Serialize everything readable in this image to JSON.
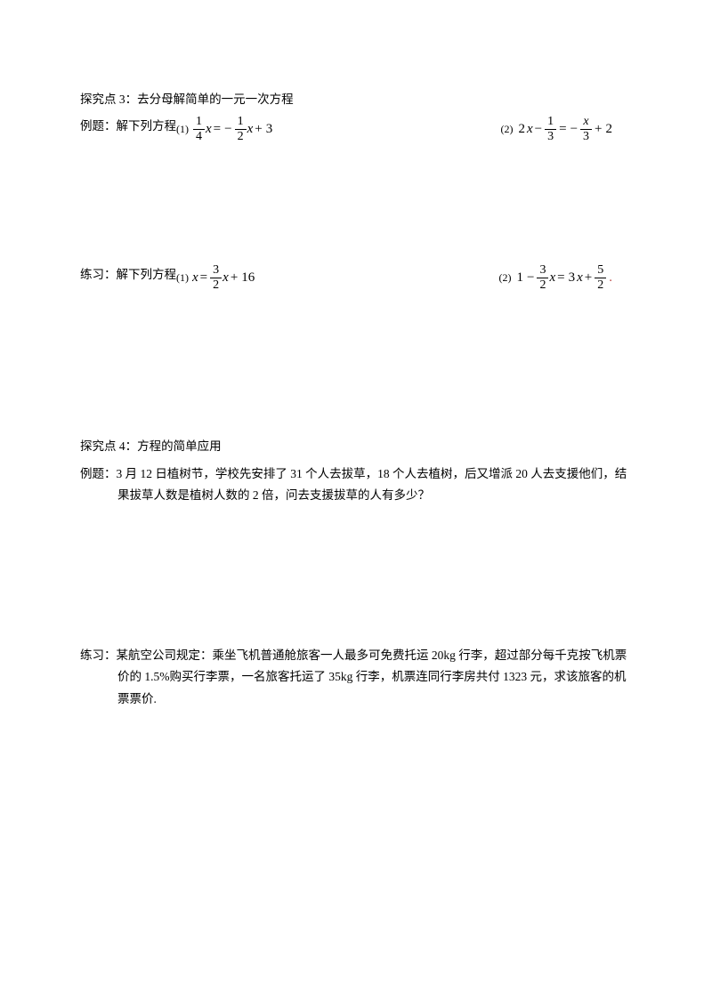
{
  "section3": {
    "title": "探究点 3：去分母解简单的一元一次方程",
    "example_label": "例题：解下列方程",
    "practice_label": "练习：解下列方程",
    "p1": "(1)",
    "p2": "(2)",
    "eq1": {
      "f1n": "1",
      "f1d": "4",
      "x1": "x",
      "eq": "=",
      "neg": "−",
      "f2n": "1",
      "f2d": "2",
      "x2": "x",
      "plus": "+",
      "c": "3"
    },
    "eq2": {
      "two": "2",
      "x1": "x",
      "minus": "−",
      "f1n": "1",
      "f1d": "3",
      "eq": "=",
      "neg": "−",
      "f2n": "x",
      "f2d": "3",
      "plus": "+",
      "c": "2"
    },
    "eq3": {
      "x1": "x",
      "eq": "=",
      "f1n": "3",
      "f1d": "2",
      "x2": "x",
      "plus": "+",
      "c": "16"
    },
    "eq4": {
      "one": "1",
      "minus": "−",
      "f1n": "3",
      "f1d": "2",
      "x1": "x",
      "eq": "=",
      "three": "3",
      "x2": "x",
      "plus": "+",
      "f2n": "5",
      "f2d": "2",
      "dot": "."
    }
  },
  "section4": {
    "title": "探究点 4：方程的简单应用",
    "example_label": "例题：",
    "example_text1": "3 月 12 日植树节，学校先安排了 31 个人去拔草，18 个人去植树，后又增派 20 人去支援他们，结",
    "example_text2": "果拔草人数是植树人数的 2 倍，问去支援拔草的人有多少？",
    "practice_label": "练习：",
    "practice_text1": "某航空公司规定：乘坐飞机普通舱旅客一人最多可免费托运 20kg 行李，超过部分每千克按飞机票",
    "practice_text2": "价的 1.5%购买行李票，一名旅客托运了 35kg 行李，机票连同行李房共付 1323 元，求该旅客的机",
    "practice_text3": "票票价."
  }
}
